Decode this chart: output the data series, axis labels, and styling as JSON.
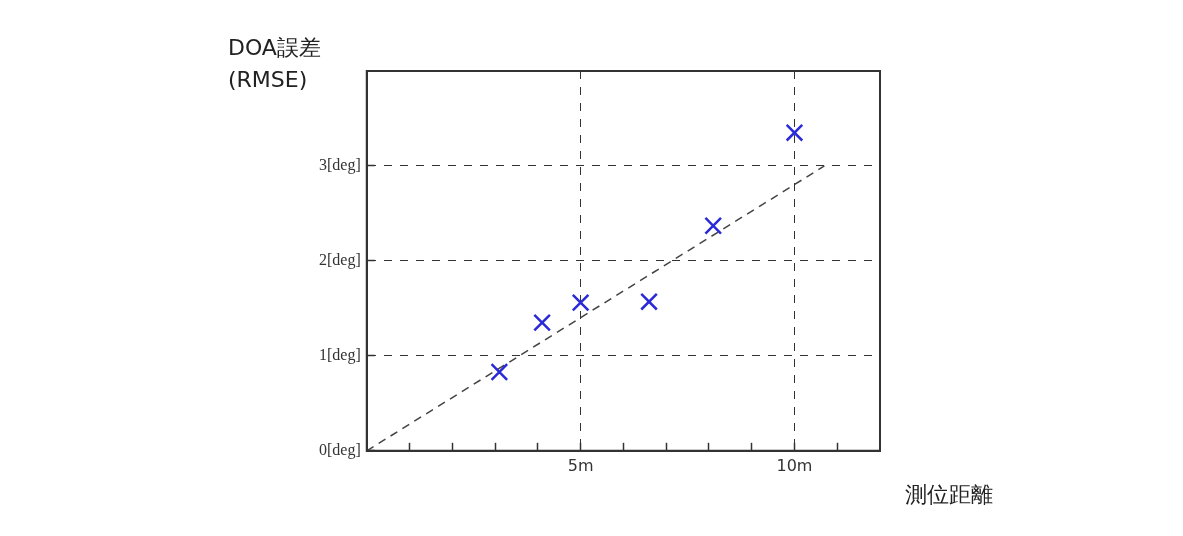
{
  "chart_data": {
    "type": "scatter",
    "xlabel": "測位距離",
    "ylabel": "DOA誤差 (RMSE)",
    "x": [
      3.1,
      4.1,
      5.0,
      6.6,
      8.1,
      10.0
    ],
    "series": [
      {
        "color": "#2a2ad8",
        "marker": "cross",
        "values": [
          0.83,
          1.35,
          1.56,
          1.57,
          2.37,
          3.35
        ]
      },
      {
        "type": "line",
        "color": "#444444",
        "marker": "none",
        "line_style": "dashed",
        "x": [
          0,
          10.7
        ],
        "values": [
          0,
          3
        ]
      }
    ],
    "xlim": [
      0,
      12
    ],
    "ylim": [
      0,
      4
    ],
    "xticks": [
      {
        "value": 1,
        "label": null
      },
      {
        "value": 2,
        "label": null
      },
      {
        "value": 3,
        "label": null
      },
      {
        "value": 4,
        "label": null
      },
      {
        "value": 5,
        "label": "5m"
      },
      {
        "value": 6,
        "label": null
      },
      {
        "value": 7,
        "label": null
      },
      {
        "value": 8,
        "label": null
      },
      {
        "value": 9,
        "label": null
      },
      {
        "value": 10,
        "label": "10m"
      },
      {
        "value": 11,
        "label": null
      }
    ],
    "yticks": [
      {
        "value": 0,
        "label": "0[deg]"
      },
      {
        "value": 1,
        "label": "1[deg]"
      },
      {
        "value": 2,
        "label": "2[deg]"
      },
      {
        "value": 3,
        "label": "3[deg]"
      }
    ],
    "grid": true,
    "legend": false
  }
}
